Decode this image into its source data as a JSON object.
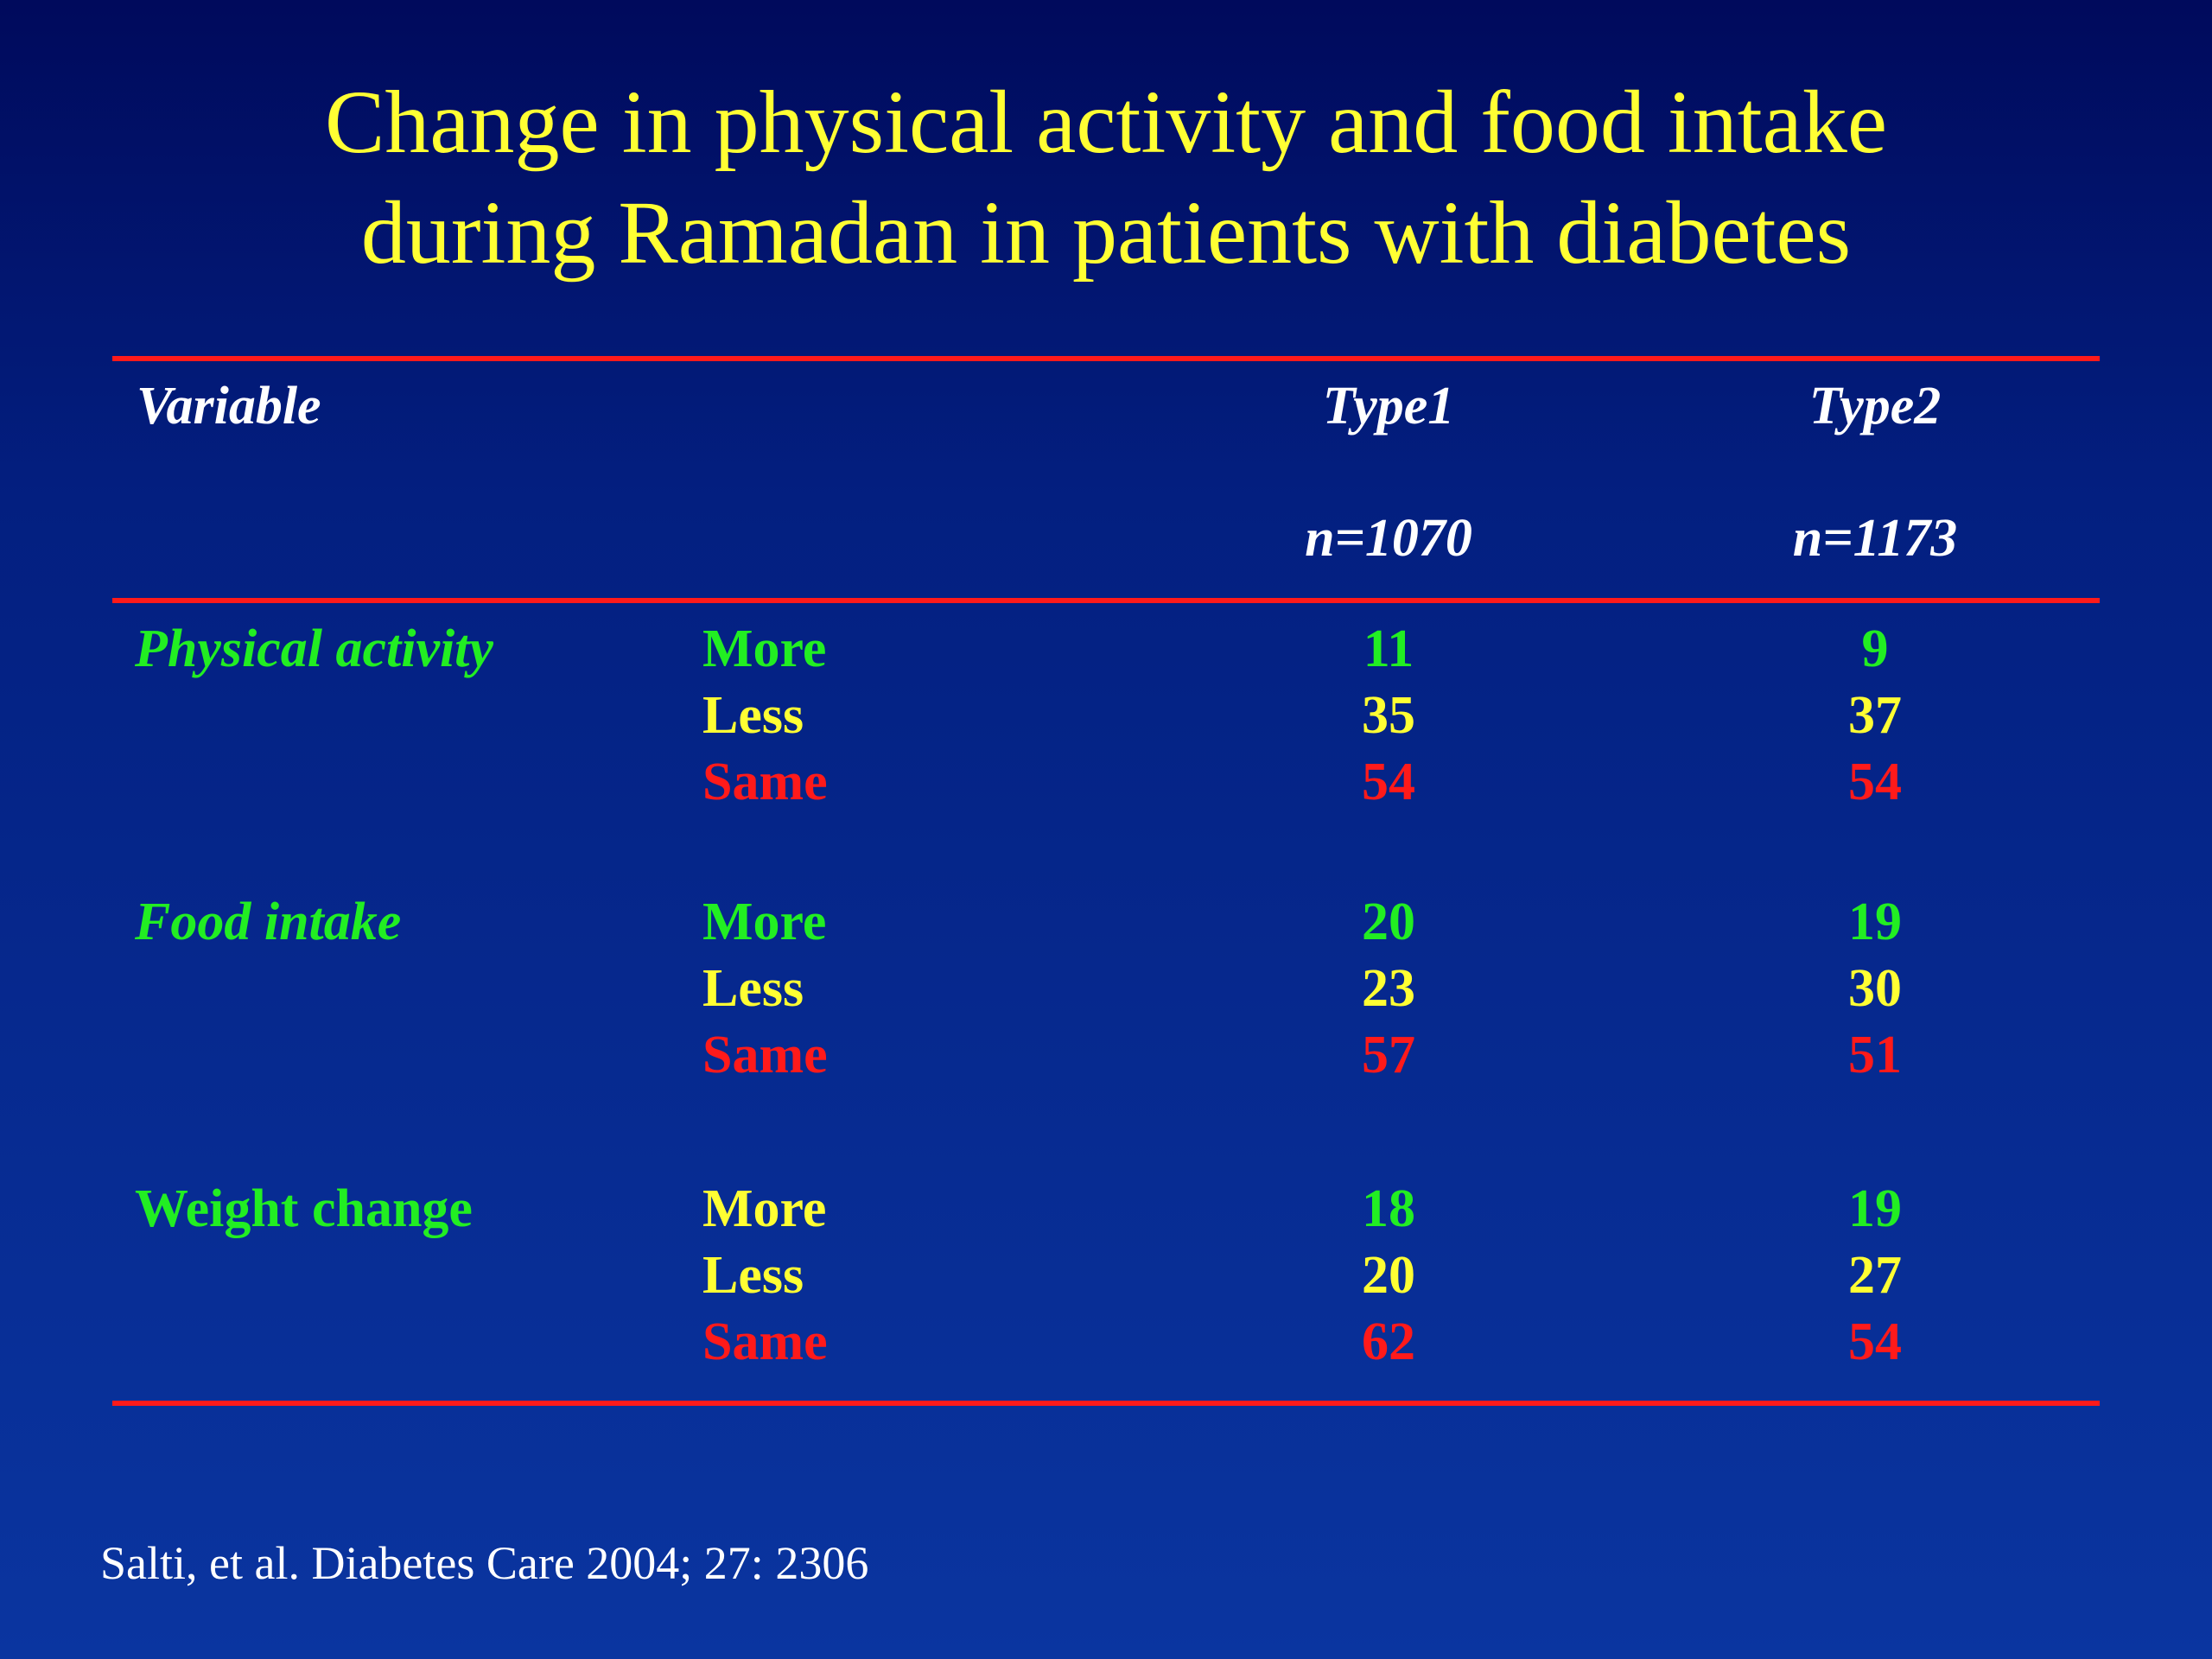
{
  "title": {
    "line1": "Change in physical activity and food intake",
    "line2": "during Ramadan in patients with diabetes"
  },
  "table": {
    "headers": {
      "variable": "Variable",
      "type1": "Type1",
      "type1_n": "n=1070",
      "type2": "Type2",
      "type2_n": "n=1173"
    },
    "groups": [
      {
        "label": "Physical activity",
        "rows": [
          {
            "level": "More",
            "type1": "11",
            "type2": "9"
          },
          {
            "level": "Less",
            "type1": "35",
            "type2": "37"
          },
          {
            "level": "Same",
            "type1": "54",
            "type2": "54"
          }
        ]
      },
      {
        "label": "Food intake",
        "rows": [
          {
            "level": "More",
            "type1": "20",
            "type2": "19"
          },
          {
            "level": "Less",
            "type1": "23",
            "type2": "30"
          },
          {
            "level": "Same",
            "type1": "57",
            "type2": "51"
          }
        ]
      },
      {
        "label": "Weight change",
        "rows": [
          {
            "level": "More",
            "type1": "18",
            "type2": "19"
          },
          {
            "level": "Less",
            "type1": "20",
            "type2": "27"
          },
          {
            "level": "Same",
            "type1": "62",
            "type2": "54"
          }
        ]
      }
    ]
  },
  "citation": "Salti, et al. Diabetes Care 2004; 27: 2306",
  "colors": {
    "background_top": "#000a5c",
    "background_bottom": "#0a35a0",
    "title": "#ffff33",
    "rule": "#ff1a1a",
    "more": "#22ee22",
    "less": "#ffff33",
    "same": "#ff1a1a",
    "variable_label": "#22ee22",
    "header": "#ffffff"
  }
}
